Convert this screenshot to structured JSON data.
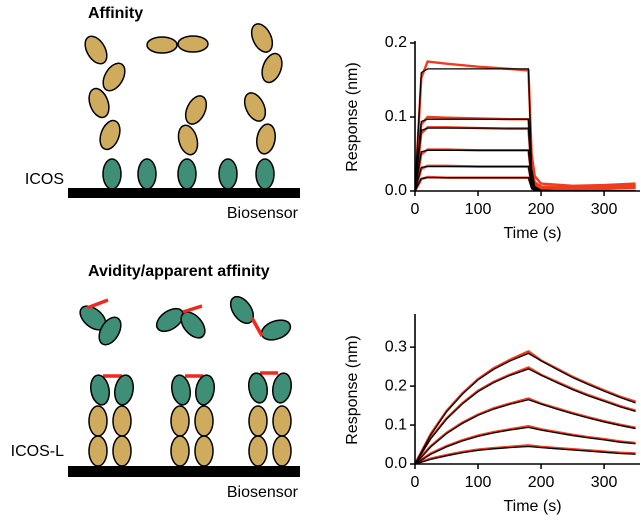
{
  "diagram": {
    "top": {
      "title": "Affinity",
      "receptor_label": "ICOS",
      "surface_label": "Biosensor"
    },
    "bottom": {
      "title": "Avidity/apparent affinity",
      "receptor_label": "ICOS-L",
      "surface_label": "Biosensor"
    }
  },
  "chart_data": [
    {
      "type": "line",
      "xlabel": "Time (s)",
      "ylabel": "Response (nm)",
      "xlim": [
        0,
        357
      ],
      "ylim": [
        0,
        0.2
      ],
      "xticks": [
        0,
        100,
        200,
        300
      ],
      "yticks": [
        {
          "value": 0,
          "label": "0.0"
        },
        {
          "value": 0.1,
          "label": "0.1"
        },
        {
          "value": 0.2,
          "label": "0.2"
        }
      ],
      "x": [
        0,
        10,
        20,
        50,
        100,
        150,
        180,
        185,
        190,
        200,
        250,
        300,
        350
      ],
      "series": [
        {
          "color": "#f23a1e",
          "values": [
            0,
            0.153,
            0.175,
            0.172,
            0.168,
            0.165,
            0.163,
            0.05,
            0.02,
            0.01,
            0.007,
            0.008,
            0.01
          ]
        },
        {
          "color": "#f23a1e",
          "values": [
            0,
            0.09,
            0.1,
            0.099,
            0.098,
            0.097,
            0.097,
            0.03,
            0.012,
            0.006,
            0.005,
            0.006,
            0.008
          ]
        },
        {
          "color": "#f23a1e",
          "values": [
            0,
            0.078,
            0.086,
            0.086,
            0.085,
            0.084,
            0.084,
            0.026,
            0.01,
            0.005,
            0.004,
            0.005,
            0.007
          ]
        },
        {
          "color": "#f23a1e",
          "values": [
            0,
            0.05,
            0.056,
            0.056,
            0.055,
            0.055,
            0.055,
            0.017,
            0.007,
            0.004,
            0.003,
            0.004,
            0.006
          ]
        },
        {
          "color": "#f23a1e",
          "values": [
            0,
            0.03,
            0.034,
            0.034,
            0.033,
            0.033,
            0.033,
            0.01,
            0.005,
            0.003,
            0.002,
            0.003,
            0.005
          ]
        },
        {
          "color": "#f23a1e",
          "values": [
            0,
            0.016,
            0.019,
            0.018,
            0.018,
            0.018,
            0.018,
            0.006,
            0.003,
            0.002,
            0.002,
            0.003,
            0.004
          ]
        },
        {
          "color": "#000000",
          "values": [
            0,
            0.16,
            0.165,
            0.165,
            0.165,
            0.165,
            0.165,
            0.03,
            0.006,
            0.001,
            0,
            0,
            0
          ]
        },
        {
          "color": "#000000",
          "values": [
            0,
            0.094,
            0.097,
            0.097,
            0.097,
            0.097,
            0.097,
            0.018,
            0.004,
            0.001,
            0,
            0,
            0
          ]
        },
        {
          "color": "#000000",
          "values": [
            0,
            0.082,
            0.085,
            0.085,
            0.085,
            0.085,
            0.085,
            0.016,
            0.003,
            0,
            0,
            0,
            0
          ]
        },
        {
          "color": "#000000",
          "values": [
            0,
            0.053,
            0.055,
            0.055,
            0.055,
            0.055,
            0.055,
            0.01,
            0.002,
            0,
            0,
            0,
            0
          ]
        },
        {
          "color": "#000000",
          "values": [
            0,
            0.032,
            0.033,
            0.033,
            0.033,
            0.033,
            0.033,
            0.006,
            0.001,
            0,
            0,
            0,
            0
          ]
        },
        {
          "color": "#000000",
          "values": [
            0,
            0.017,
            0.018,
            0.018,
            0.018,
            0.018,
            0.018,
            0.003,
            0.001,
            0,
            0,
            0,
            0
          ]
        }
      ]
    },
    {
      "type": "line",
      "xlabel": "Time (s)",
      "ylabel": "Response (nm)",
      "xlim": [
        0,
        357
      ],
      "ylim": [
        0,
        0.38
      ],
      "xticks": [
        0,
        100,
        200,
        300
      ],
      "yticks": [
        {
          "value": 0,
          "label": "0.0"
        },
        {
          "value": 0.1,
          "label": "0.1"
        },
        {
          "value": 0.2,
          "label": "0.2"
        },
        {
          "value": 0.3,
          "label": "0.3"
        }
      ],
      "x": [
        0,
        25,
        50,
        75,
        100,
        125,
        150,
        180,
        200,
        225,
        250,
        275,
        300,
        325,
        350
      ],
      "series": [
        {
          "color": "#f23a1e",
          "values": [
            0,
            0.077,
            0.136,
            0.181,
            0.218,
            0.246,
            0.267,
            0.289,
            0.266,
            0.245,
            0.224,
            0.206,
            0.189,
            0.173,
            0.16
          ]
        },
        {
          "color": "#f23a1e",
          "values": [
            0,
            0.067,
            0.117,
            0.156,
            0.188,
            0.211,
            0.229,
            0.248,
            0.229,
            0.211,
            0.193,
            0.177,
            0.163,
            0.149,
            0.137
          ]
        },
        {
          "color": "#f23a1e",
          "values": [
            0,
            0.046,
            0.08,
            0.106,
            0.127,
            0.143,
            0.155,
            0.168,
            0.155,
            0.143,
            0.131,
            0.12,
            0.11,
            0.101,
            0.093
          ]
        },
        {
          "color": "#f23a1e",
          "values": [
            0,
            0.027,
            0.046,
            0.061,
            0.073,
            0.082,
            0.089,
            0.097,
            0.089,
            0.082,
            0.075,
            0.069,
            0.064,
            0.058,
            0.054
          ]
        },
        {
          "color": "#f23a1e",
          "values": [
            0,
            0.014,
            0.023,
            0.031,
            0.037,
            0.041,
            0.044,
            0.048,
            0.044,
            0.041,
            0.038,
            0.035,
            0.032,
            0.029,
            0.027
          ]
        },
        {
          "color": "#000000",
          "values": [
            0,
            0.075,
            0.134,
            0.179,
            0.216,
            0.243,
            0.264,
            0.284,
            0.265,
            0.243,
            0.222,
            0.204,
            0.187,
            0.171,
            0.157
          ]
        },
        {
          "color": "#000000",
          "values": [
            0,
            0.065,
            0.115,
            0.154,
            0.186,
            0.209,
            0.227,
            0.244,
            0.228,
            0.209,
            0.191,
            0.175,
            0.161,
            0.147,
            0.135
          ]
        },
        {
          "color": "#000000",
          "values": [
            0,
            0.044,
            0.078,
            0.104,
            0.125,
            0.141,
            0.153,
            0.165,
            0.154,
            0.141,
            0.129,
            0.118,
            0.108,
            0.099,
            0.091
          ]
        },
        {
          "color": "#000000",
          "values": [
            0,
            0.025,
            0.044,
            0.059,
            0.071,
            0.08,
            0.087,
            0.094,
            0.087,
            0.08,
            0.073,
            0.067,
            0.062,
            0.056,
            0.052
          ]
        },
        {
          "color": "#000000",
          "values": [
            0,
            0.012,
            0.021,
            0.029,
            0.035,
            0.039,
            0.042,
            0.045,
            0.042,
            0.039,
            0.036,
            0.033,
            0.03,
            0.027,
            0.025
          ]
        }
      ]
    }
  ]
}
